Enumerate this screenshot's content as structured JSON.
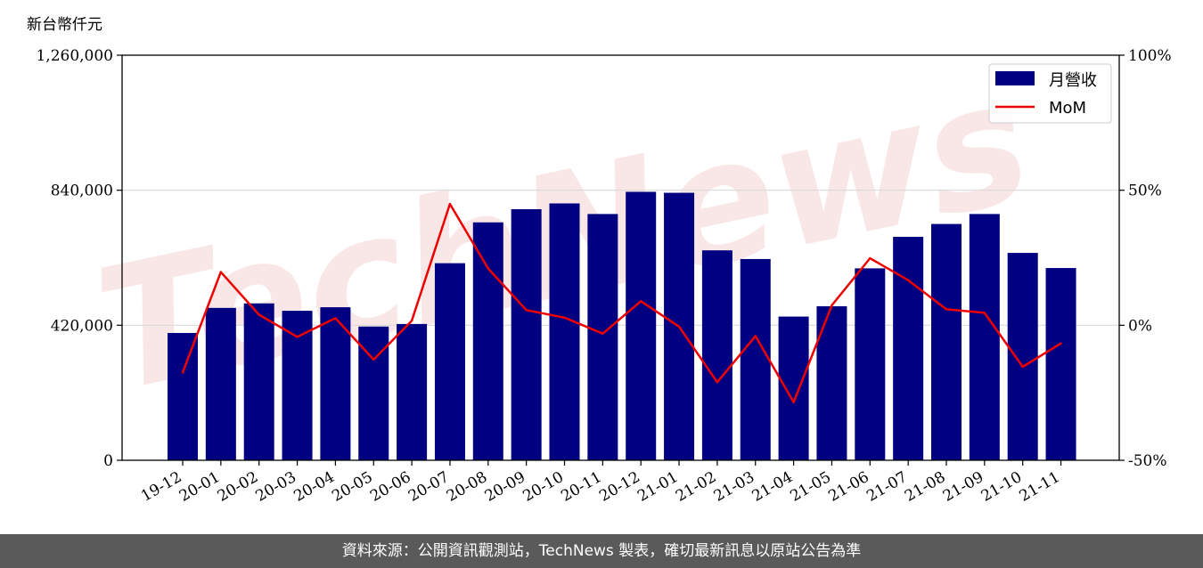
{
  "chart_data": {
    "type": "bar",
    "y_unit_label": "新台幣仟元",
    "categories": [
      "19-12",
      "20-01",
      "20-02",
      "20-03",
      "20-04",
      "20-05",
      "20-06",
      "20-07",
      "20-08",
      "20-09",
      "20-10",
      "20-11",
      "20-12",
      "21-01",
      "21-02",
      "21-03",
      "21-04",
      "21-05",
      "21-06",
      "21-07",
      "21-08",
      "21-09",
      "21-10",
      "21-11"
    ],
    "series": [
      {
        "name": "月營收",
        "type": "bar",
        "axis": "left",
        "color": "#000080",
        "values": [
          396000,
          474000,
          488000,
          465000,
          476000,
          416000,
          424000,
          613000,
          740000,
          781000,
          799000,
          766000,
          835000,
          832000,
          653000,
          626000,
          447000,
          479000,
          597000,
          695000,
          735000,
          766000,
          645000,
          598000
        ]
      },
      {
        "name": "MoM",
        "type": "line",
        "axis": "right",
        "color": "#ee0000",
        "values": [
          -17.5,
          19.7,
          3.9,
          -4.3,
          2.6,
          -12.7,
          1.7,
          44.9,
          21.0,
          5.6,
          2.8,
          -3.1,
          8.9,
          -0.5,
          -21.1,
          -4.0,
          -28.5,
          7.4,
          24.8,
          16.7,
          5.9,
          4.6,
          -15.4,
          -6.7
        ]
      }
    ],
    "y_left": {
      "min": 0,
      "max": 1260000,
      "ticks": [
        0,
        420000,
        840000,
        1260000
      ],
      "tick_labels": [
        "0",
        "420,000",
        "840,000",
        "1,260,000"
      ]
    },
    "y_right": {
      "min": -50,
      "max": 100,
      "ticks": [
        -50,
        0,
        50,
        100
      ],
      "tick_labels": [
        "-50%",
        "0%",
        "50%",
        "100%"
      ]
    },
    "grid": "horizontal",
    "legend": "top-right",
    "watermark": "TechNews"
  },
  "footer": {
    "source": "資料來源：公開資訊觀測站，TechNews 製表，確切最新訊息以原站公告為準"
  }
}
